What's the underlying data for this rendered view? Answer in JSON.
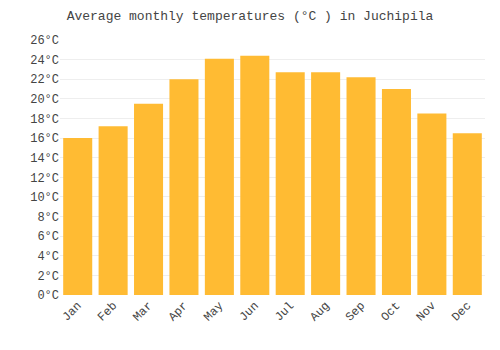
{
  "chart_data": {
    "type": "bar",
    "title": "Average monthly temperatures (°C ) in Juchipila",
    "categories": [
      "Jan",
      "Feb",
      "Mar",
      "Apr",
      "May",
      "Jun",
      "Jul",
      "Aug",
      "Sep",
      "Oct",
      "Nov",
      "Dec"
    ],
    "values": [
      16.0,
      17.2,
      19.5,
      22.0,
      24.1,
      24.4,
      22.7,
      22.7,
      22.2,
      21.0,
      18.5,
      16.5
    ],
    "color": "#FFBB33",
    "ylim": [
      0,
      26
    ],
    "yticks": [
      {
        "value": 0,
        "label": "0°C"
      },
      {
        "value": 2,
        "label": "2°C"
      },
      {
        "value": 4,
        "label": "4°C"
      },
      {
        "value": 6,
        "label": "6°C"
      },
      {
        "value": 8,
        "label": "8°C"
      },
      {
        "value": 10,
        "label": "10°C"
      },
      {
        "value": 12,
        "label": "12°C"
      },
      {
        "value": 14,
        "label": "14°C"
      },
      {
        "value": 16,
        "label": "16°C"
      },
      {
        "value": 18,
        "label": "18°C"
      },
      {
        "value": 20,
        "label": "20°C"
      },
      {
        "value": 22,
        "label": "22°C"
      },
      {
        "value": 24,
        "label": "24°C"
      },
      {
        "value": 26,
        "label": "26°C"
      }
    ],
    "grid": true
  }
}
